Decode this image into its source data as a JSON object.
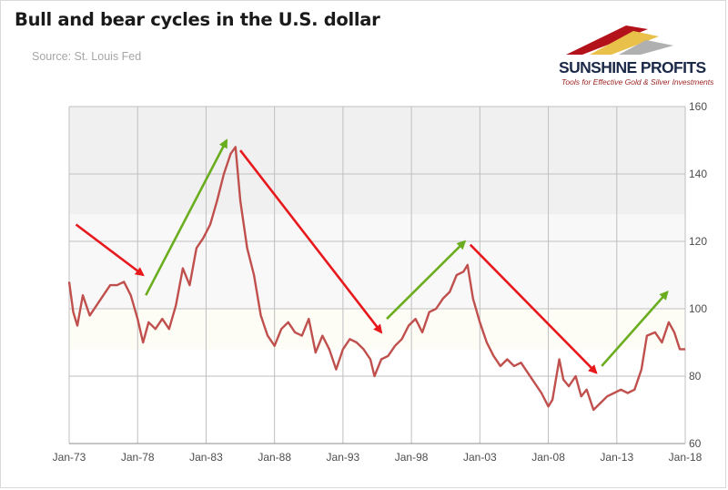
{
  "header": {
    "title": "Bull and bear cycles in the U.S. dollar",
    "source": "Source: St. Louis Fed"
  },
  "logo": {
    "name": "SUNSHINE PROFITS",
    "tagline": "Tools for Effective Gold & Silver Investments",
    "colors": [
      "#b4121b",
      "#e8c04a",
      "#8c8c8c"
    ]
  },
  "colors": {
    "series": "#c0504d",
    "bear_arrow": "#e8191d",
    "bull_arrow": "#6aad1e",
    "band_upper": "#f0f0f0",
    "band_mid": "#f8f8f8",
    "band_lower": "#fdfcf5"
  },
  "chart_data": {
    "type": "line",
    "title": "Bull and bear cycles in the U.S. dollar",
    "xlabel": "",
    "ylabel": "",
    "xlim": [
      1973.0,
      2018.0
    ],
    "ylim": [
      60,
      160
    ],
    "yticks": [
      60,
      80,
      100,
      120,
      140,
      160
    ],
    "y_axis_side": "right",
    "grid": true,
    "xtick_labels": [
      "Jan-73",
      "Jan-78",
      "Jan-83",
      "Jan-88",
      "Jan-93",
      "Jan-98",
      "Jan-03",
      "Jan-08",
      "Jan-13",
      "Jan-18"
    ],
    "xtick_values": [
      1973,
      1978,
      1983,
      1988,
      1993,
      1998,
      2003,
      2008,
      2013,
      2018
    ],
    "series": [
      {
        "x": [
          1973.0,
          1973.3,
          1973.6,
          1974.0,
          1974.5,
          1975.0,
          1975.5,
          1976.0,
          1976.5,
          1977.0,
          1977.5,
          1978.0,
          1978.4,
          1978.8,
          1979.3,
          1979.8,
          1980.3,
          1980.8,
          1981.3,
          1981.8,
          1982.3,
          1982.8,
          1983.3,
          1983.8,
          1984.3,
          1984.8,
          1985.15,
          1985.5,
          1986.0,
          1986.5,
          1987.0,
          1987.5,
          1988.0,
          1988.5,
          1989.0,
          1989.5,
          1990.0,
          1990.5,
          1991.0,
          1991.5,
          1992.0,
          1992.5,
          1993.0,
          1993.5,
          1994.0,
          1994.5,
          1995.0,
          1995.3,
          1995.8,
          1996.3,
          1996.8,
          1997.3,
          1997.8,
          1998.3,
          1998.8,
          1999.3,
          1999.8,
          2000.3,
          2000.8,
          2001.3,
          2001.8,
          2002.1,
          2002.5,
          2003.0,
          2003.5,
          2004.0,
          2004.5,
          2005.0,
          2005.5,
          2006.0,
          2006.5,
          2007.0,
          2007.5,
          2008.0,
          2008.3,
          2008.8,
          2009.1,
          2009.5,
          2010.0,
          2010.4,
          2010.8,
          2011.3,
          2011.8,
          2012.3,
          2012.8,
          2013.3,
          2013.8,
          2014.3,
          2014.8,
          2015.2,
          2015.8,
          2016.3,
          2016.8,
          2017.2,
          2017.6,
          2018.0
        ],
        "values": [
          108,
          99,
          95,
          104,
          98,
          101,
          104,
          107,
          107,
          108,
          104,
          97,
          90,
          96,
          94,
          97,
          94,
          101,
          112,
          107,
          118,
          121,
          125,
          132,
          140,
          146,
          148,
          132,
          118,
          110,
          98,
          92,
          89,
          94,
          96,
          93,
          92,
          97,
          87,
          92,
          88,
          82,
          88,
          91,
          90,
          88,
          85,
          80,
          85,
          86,
          89,
          91,
          95,
          97,
          93,
          99,
          100,
          103,
          105,
          110,
          111,
          113,
          103,
          96,
          90,
          86,
          83,
          85,
          83,
          84,
          81,
          78,
          75,
          71,
          73,
          85,
          79,
          77,
          80,
          74,
          76,
          70,
          72,
          74,
          75,
          76,
          75,
          76,
          82,
          92,
          93,
          90,
          96,
          93,
          88,
          88
        ]
      }
    ],
    "annotations": [
      {
        "type": "bear",
        "from": [
          1973.5,
          125
        ],
        "to": [
          1978.4,
          110
        ]
      },
      {
        "type": "bull",
        "from": [
          1978.6,
          104
        ],
        "to": [
          1984.5,
          150
        ]
      },
      {
        "type": "bear",
        "from": [
          1985.5,
          147
        ],
        "to": [
          1995.8,
          93
        ]
      },
      {
        "type": "bull",
        "from": [
          1996.2,
          97
        ],
        "to": [
          2001.9,
          120
        ]
      },
      {
        "type": "bear",
        "from": [
          2002.3,
          119
        ],
        "to": [
          2011.5,
          81
        ]
      },
      {
        "type": "bull",
        "from": [
          2011.9,
          83
        ],
        "to": [
          2016.7,
          105
        ]
      }
    ]
  }
}
